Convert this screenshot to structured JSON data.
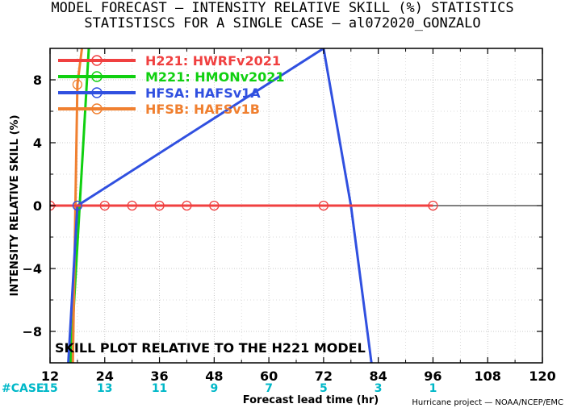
{
  "title_line1": "MODEL FORECAST — INTENSITY RELATIVE SKILL (%) STATISTICS",
  "title_line2": "STATISTISCS FOR A SINGLE CASE — al072020_GONZALO",
  "annotation": "SKILL PLOT RELATIVE TO THE H221 MODEL",
  "case_header": "#CASE",
  "credit": "Hurricane project — NOAA/NCEP/EMC",
  "chart_data": {
    "type": "line",
    "title": "MODEL FORECAST — INTENSITY RELATIVE SKILL (%) STATISTICS",
    "subtitle": "STATISTISCS FOR A SINGLE CASE — al072020_GONZALO",
    "xlabel": "Forecast lead time (hr)",
    "ylabel": "INTENSITY RELATIVE SKILL (%)",
    "xlim": [
      12,
      120
    ],
    "ylim": [
      -10,
      10
    ],
    "xticks": [
      12,
      24,
      36,
      48,
      60,
      72,
      84,
      96,
      108,
      120
    ],
    "yticks": [
      -8,
      -4,
      0,
      4,
      8
    ],
    "grid": true,
    "legend_position": "top-left",
    "case_counts": [
      {
        "x": 12,
        "count": "15"
      },
      {
        "x": 24,
        "count": "13"
      },
      {
        "x": 36,
        "count": "11"
      },
      {
        "x": 48,
        "count": "9"
      },
      {
        "x": 60,
        "count": "7"
      },
      {
        "x": 72,
        "count": "5"
      },
      {
        "x": 84,
        "count": "3"
      },
      {
        "x": 96,
        "count": "1"
      }
    ],
    "series": [
      {
        "name": "H221: HWRFv2021",
        "color": "#f04040",
        "x": [
          12,
          18,
          24,
          30,
          36,
          42,
          48,
          72,
          96
        ],
        "y": [
          0,
          0,
          0,
          0,
          0,
          0,
          0,
          0,
          0
        ]
      },
      {
        "name": "M221: HMONv2021",
        "color": "#10d010",
        "x": [
          16.5,
          20.5
        ],
        "y": [
          -10,
          10
        ]
      },
      {
        "name": "HFSA: HAFSv1A",
        "color": "#3050e0",
        "x": [
          16,
          18,
          72,
          78,
          82.5
        ],
        "y": [
          -10,
          0,
          10,
          0,
          -10
        ]
      },
      {
        "name": "HFSB: HAFSv1B",
        "color": "#f08030",
        "x": [
          17,
          18,
          19
        ],
        "y": [
          -10,
          7.7,
          10
        ]
      }
    ]
  }
}
